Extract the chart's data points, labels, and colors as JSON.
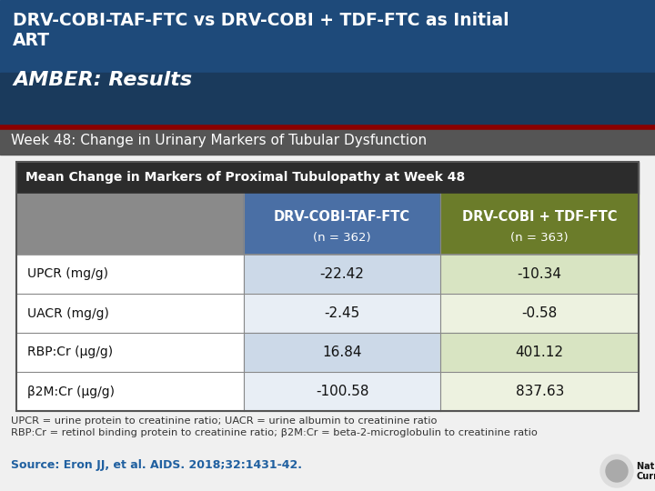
{
  "title_line1": "DRV-COBI-TAF-FTC vs DRV-COBI + TDF-FTC as Initial",
  "title_line2": "ART",
  "title_line3": "AMBER: Results",
  "subtitle": "Week 48: Change in Urinary Markers of Tubular Dysfunction",
  "table_title": "Mean Change in Markers of Proximal Tubulopathy at Week 48",
  "col1_header": "DRV-COBI-TAF-FTC",
  "col1_subheader": "(n = 362)",
  "col2_header": "DRV-COBI + TDF-FTC",
  "col2_subheader": "(n = 363)",
  "rows": [
    {
      "label": "UPCR (mg/g)",
      "val1": "-22.42",
      "val2": "-10.34"
    },
    {
      "label": "UACR (mg/g)",
      "val1": "-2.45",
      "val2": "-0.58"
    },
    {
      "label": "RBP:Cr (μg/g)",
      "val1": "16.84",
      "val2": "401.12"
    },
    {
      "label": "β2M:Cr (μg/g)",
      "val1": "-100.58",
      "val2": "837.63"
    }
  ],
  "footnote_line1": "UPCR = urine protein to creatinine ratio; UACR = urine albumin to creatinine ratio",
  "footnote_line2": "RBP:Cr = retinol binding protein to creatinine ratio; β2M:Cr = beta-2-microglobulin to creatinine ratio",
  "source": "Source: Eron JJ, et al. AIDS. 2018;32:1431-42.",
  "bg_color": "#f0f0f0",
  "header_bg_upper": "#1e4a7a",
  "header_bg_lower": "#1a3a5c",
  "red_line_color": "#8b0000",
  "subtitle_bg": "#555555",
  "table_header_bg": "#2c2c2c",
  "col1_header_bg": "#4a6fa5",
  "col2_header_bg": "#6b7c2a",
  "row_label_bg_gray": "#8a8a8a",
  "data_row_label_bg": "#ffffff",
  "data_row1_v1_bg": "#ccd9e8",
  "data_row1_v2_bg": "#d8e4c2",
  "data_row2_v1_bg": "#e8eef5",
  "data_row2_v2_bg": "#edf2e0",
  "table_border": "#555555",
  "col_divider": "#888888"
}
